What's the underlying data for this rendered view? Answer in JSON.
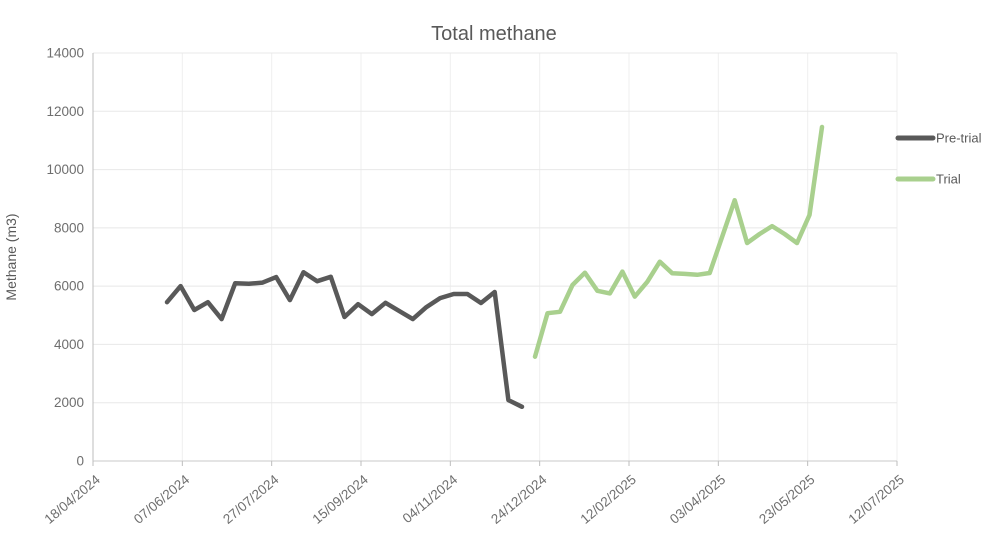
{
  "chart_data": {
    "type": "line",
    "title": "Total methane",
    "xlabel": "",
    "ylabel": "Methane (m3)",
    "ylim": [
      0,
      14000
    ],
    "y_ticks": [
      0,
      2000,
      4000,
      6000,
      8000,
      10000,
      12000,
      14000
    ],
    "x_tick_labels": [
      "18/04/2024",
      "07/06/2024",
      "27/07/2024",
      "15/09/2024",
      "04/11/2024",
      "24/12/2024",
      "12/02/2025",
      "03/04/2025",
      "23/05/2025",
      "12/07/2025"
    ],
    "grid": true,
    "legend_position": "right",
    "series": [
      {
        "name": "Pre-trial",
        "color": "#595959",
        "axis_span": [
          0.092,
          0.5336
        ],
        "values": [
          5450,
          6000,
          5180,
          5450,
          4870,
          6100,
          6080,
          6120,
          6310,
          5520,
          6480,
          6170,
          6320,
          4940,
          5380,
          5040,
          5430,
          5150,
          4870,
          5280,
          5590,
          5730,
          5730,
          5420,
          5800,
          2090,
          1860
        ]
      },
      {
        "name": "Trial",
        "color": "#a9d08e",
        "axis_span": [
          0.5498,
          0.9067
        ],
        "values": [
          3580,
          5070,
          5120,
          6040,
          6460,
          5840,
          5750,
          6500,
          5640,
          6150,
          6840,
          6440,
          6420,
          6390,
          6450,
          7700,
          8950,
          7480,
          7790,
          8060,
          7790,
          7480,
          8440,
          11460
        ]
      }
    ],
    "colors": {
      "background": "#ffffff",
      "grid_horizontal": "#e8e8e8",
      "grid_vertical": "#efefef",
      "y_axis_line": "#bdbdbd",
      "x_axis_line": "#c9c9c9",
      "tick_mark": "#bdbdbd"
    }
  }
}
